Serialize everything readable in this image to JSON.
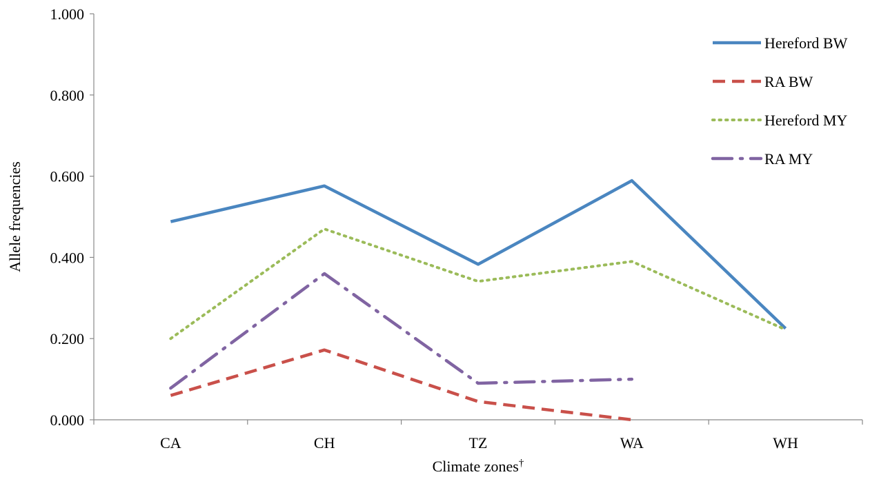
{
  "chart_data": {
    "type": "line",
    "categories": [
      "CA",
      "CH",
      "TZ",
      "WA",
      "WH"
    ],
    "xlabel": "Climate zones",
    "xlabel_marker": "†",
    "ylabel": "Allele frequencies",
    "ylim": [
      0,
      1
    ],
    "yticks": [
      "0.000",
      "0.200",
      "0.400",
      "0.600",
      "0.800",
      "1.000"
    ],
    "grid": false,
    "legend_position": "top-right",
    "series": [
      {
        "name": "Hereford BW",
        "values": [
          0.488,
          0.576,
          0.383,
          0.589,
          0.225
        ],
        "color": "#4a86c0",
        "style": "solid"
      },
      {
        "name": "RA BW",
        "values": [
          0.06,
          0.172,
          0.045,
          0.0,
          null
        ],
        "color": "#c9504a",
        "style": "dashed"
      },
      {
        "name": "Hereford MY",
        "values": [
          0.2,
          0.47,
          0.341,
          0.39,
          0.222
        ],
        "color": "#9bbb59",
        "style": "dotted"
      },
      {
        "name": "RA MY",
        "values": [
          0.078,
          0.36,
          0.09,
          0.1,
          null
        ],
        "color": "#8064a2",
        "style": "dashdot"
      }
    ]
  }
}
